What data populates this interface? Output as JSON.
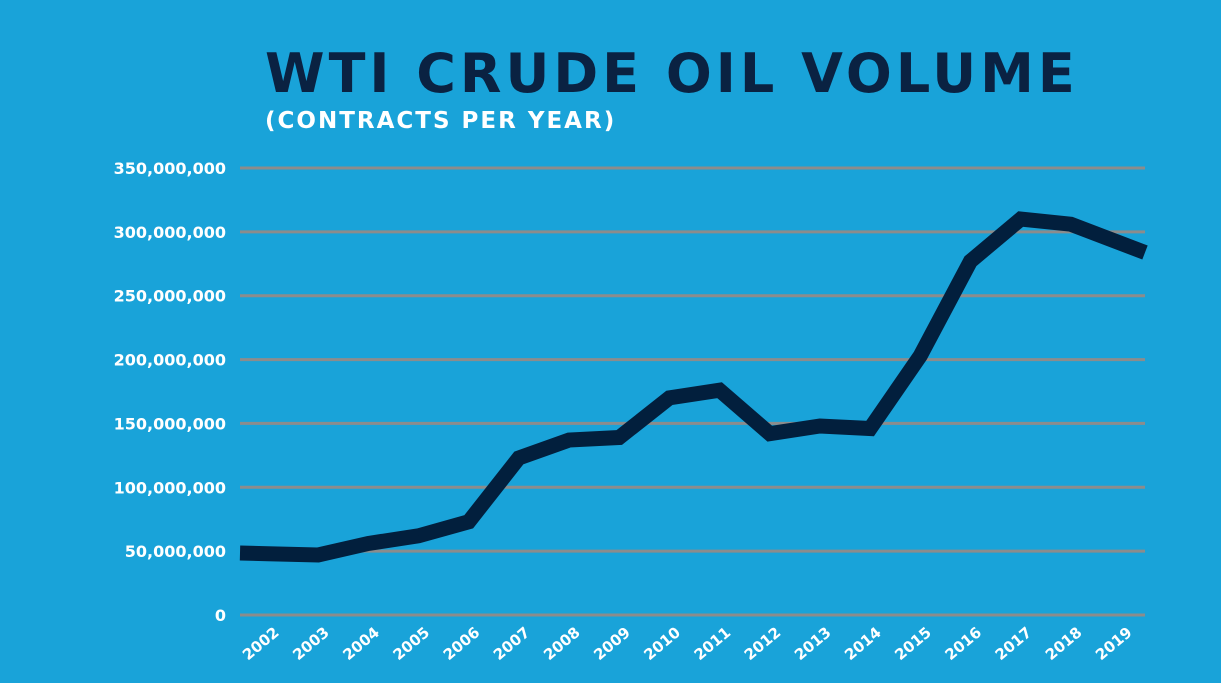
{
  "chart_data": {
    "type": "line",
    "title": "WTI CRUDE OIL VOLUME",
    "subtitle": "(CONTRACTS PER YEAR)",
    "xlabel": "",
    "ylabel": "",
    "x": [
      2002,
      2003,
      2004,
      2005,
      2006,
      2007,
      2008,
      2009,
      2010,
      2011,
      2012,
      2013,
      2014,
      2015,
      2016,
      2017,
      2018,
      2019
    ],
    "series": [
      {
        "values": [
          48000000,
          47000000,
          56000000,
          62000000,
          73000000,
          123000000,
          137000000,
          139000000,
          170000000,
          176000000,
          142000000,
          148000000,
          146000000,
          203000000,
          277000000,
          310000000,
          306000000,
          291000000
        ]
      }
    ],
    "ylim": [
      0,
      350000000
    ],
    "yticks": [
      0,
      50000000,
      100000000,
      150000000,
      200000000,
      250000000,
      300000000,
      350000000
    ],
    "ytick_labels": [
      "0",
      "50,000,000",
      "100,000,000",
      "150,000,000",
      "200,000,000",
      "250,000,000",
      "300,000,000",
      "350,000,000"
    ],
    "xtick_labels": [
      "2002",
      "2003",
      "2004",
      "2005",
      "2006",
      "2007",
      "2008",
      "2009",
      "2010",
      "2011",
      "2012",
      "2013",
      "2014",
      "2015",
      "2016",
      "2017",
      "2018",
      "2019"
    ],
    "grid": "horizontal",
    "legend": "none",
    "colors": {
      "background": "#19a3d9",
      "line": "#021f3d",
      "grid": "#8c8c8c",
      "title": "#0a2242",
      "labels": "#ffffff"
    }
  }
}
